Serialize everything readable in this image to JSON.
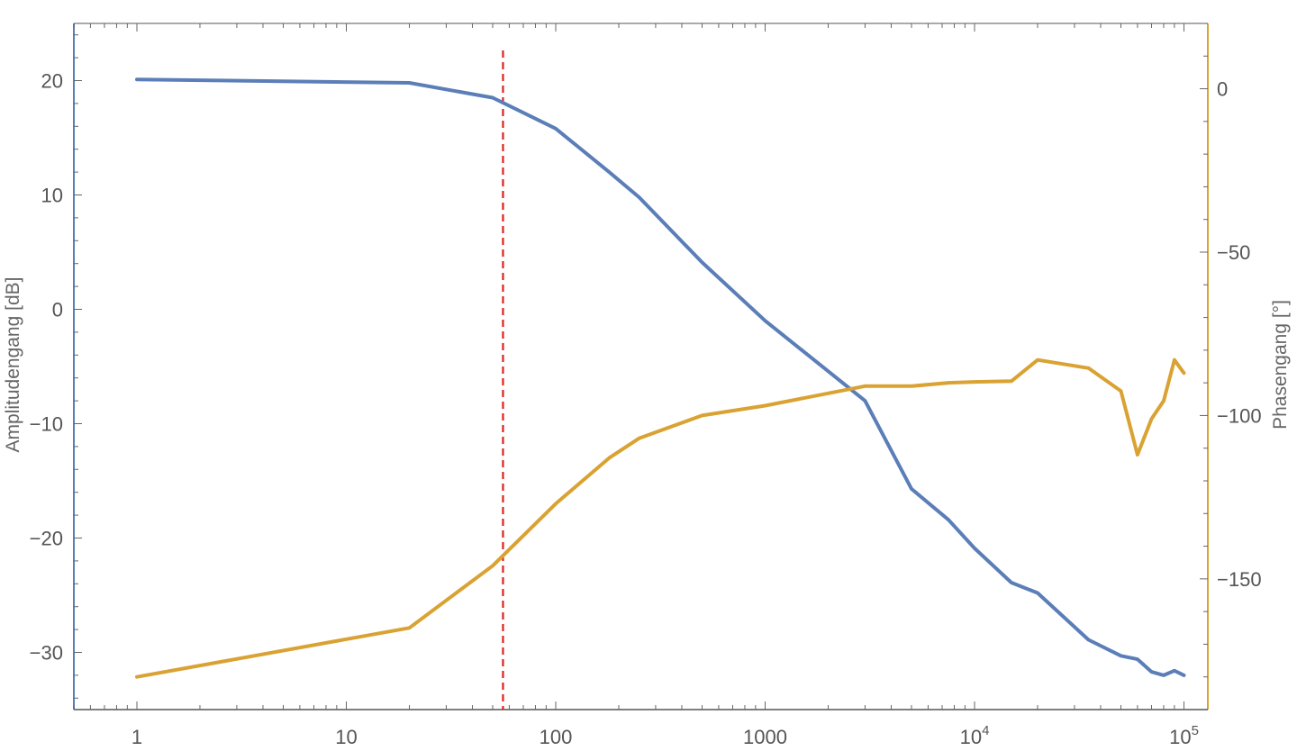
{
  "chart_data": {
    "type": "line",
    "x_scale": "log",
    "xlim": [
      0.5,
      130000
    ],
    "ylim_left": [
      -35,
      25
    ],
    "ylim_right": [
      -190,
      20
    ],
    "x_ticks": [
      {
        "value": 1,
        "label": "1"
      },
      {
        "value": 10,
        "label": "10"
      },
      {
        "value": 100,
        "label": "100"
      },
      {
        "value": 1000,
        "label": "1000"
      },
      {
        "value": 10000,
        "label": "10",
        "sup": "4"
      },
      {
        "value": 100000,
        "label": "10",
        "sup": "5"
      }
    ],
    "y_left_ticks": [
      {
        "value": 20,
        "label": "20"
      },
      {
        "value": 10,
        "label": "10"
      },
      {
        "value": 0,
        "label": "0"
      },
      {
        "value": -10,
        "label": "−10"
      },
      {
        "value": -20,
        "label": "−20"
      },
      {
        "value": -30,
        "label": "−30"
      }
    ],
    "y_right_ticks": [
      {
        "value": 0,
        "label": "0"
      },
      {
        "value": -50,
        "label": "−50"
      },
      {
        "value": -100,
        "label": "−100"
      },
      {
        "value": -150,
        "label": "−150"
      }
    ],
    "ylabel_left": "Amplitudengang [dB]",
    "ylabel_right": "Phasengang [°]",
    "xlabel": "",
    "title": "",
    "grid": false,
    "colors": {
      "left_axis": "#5b7eb8",
      "right_axis": "#d9a233",
      "marker_line": "#e02020"
    },
    "marker_line_x": 56,
    "series": [
      {
        "axis": "left",
        "color": "#5b7eb8",
        "x": [
          1,
          20,
          50,
          100,
          180,
          250,
          500,
          1000,
          3000,
          5000,
          7500,
          10000,
          15000,
          20000,
          35000,
          50000,
          60000,
          70000,
          80000,
          90000,
          100000
        ],
        "y": [
          20.1,
          19.8,
          18.5,
          15.8,
          12.0,
          9.8,
          4.1,
          -1.0,
          -8.0,
          -15.7,
          -18.4,
          -20.9,
          -23.9,
          -24.8,
          -28.9,
          -30.3,
          -30.6,
          -31.7,
          -32.0,
          -31.6,
          -32.0
        ]
      },
      {
        "axis": "right",
        "color": "#d9a233",
        "x": [
          1,
          20,
          50,
          100,
          180,
          250,
          500,
          1000,
          3000,
          5000,
          7500,
          10000,
          15000,
          20000,
          35000,
          50000,
          60000,
          70000,
          80000,
          90000,
          100000
        ],
        "y": [
          -180,
          -165,
          -146,
          -127,
          -113,
          -107,
          -100,
          -97,
          -91,
          -91,
          -90,
          -89.7,
          -89.5,
          -83,
          -85.5,
          -92.5,
          -112,
          -101,
          -95.5,
          -83,
          -87
        ]
      }
    ]
  }
}
